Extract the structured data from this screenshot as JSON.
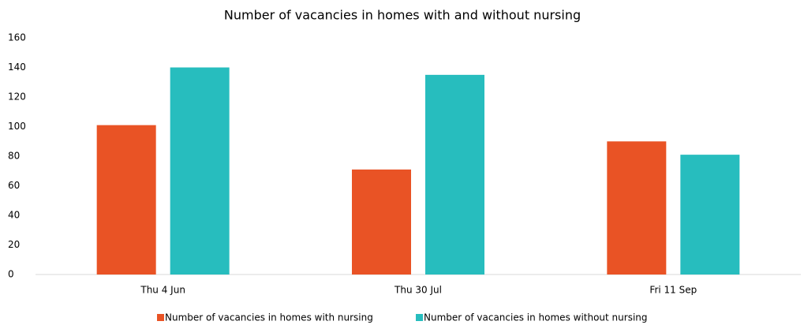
{
  "chart_data": {
    "type": "bar",
    "title": "Number of vacancies in homes with and without nursing",
    "categories": [
      "Thu 4 Jun",
      "Thu 30 Jul",
      "Fri 11 Sep"
    ],
    "series": [
      {
        "name": "Number of vacancies in homes with nursing",
        "color": "#e95325",
        "values": [
          101,
          71,
          90
        ]
      },
      {
        "name": "Number of vacancies in homes without nursing",
        "color": "#27bdbe",
        "values": [
          140,
          135,
          81
        ]
      }
    ],
    "ylim": [
      0,
      160
    ],
    "yticks": [
      0,
      20,
      40,
      60,
      80,
      100,
      120,
      140,
      160
    ],
    "grid": false,
    "legend": "bottom"
  }
}
